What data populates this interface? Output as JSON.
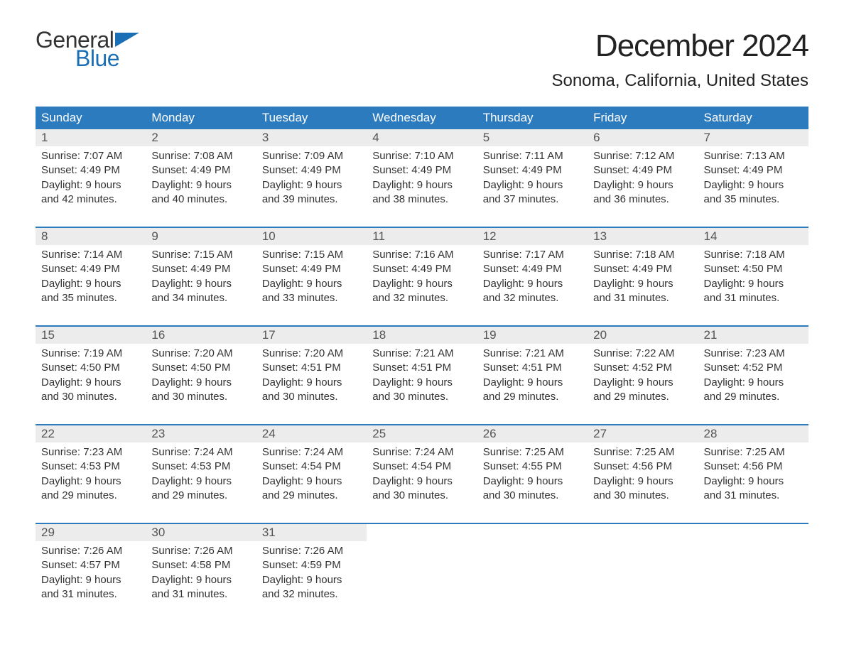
{
  "logo": {
    "text_general": "General",
    "text_blue": "Blue",
    "flag_color": "#1a6fb5"
  },
  "title": "December 2024",
  "location": "Sonoma, California, United States",
  "colors": {
    "header_bg": "#2d7bbf",
    "header_text": "#ffffff",
    "daynum_bg": "#ececec",
    "row_border": "#2d7bbf",
    "body_text": "#333333",
    "logo_blue": "#1a6fb5"
  },
  "layout": {
    "columns": 7,
    "rows": 5,
    "font_size_body": 15,
    "font_size_title": 44,
    "font_size_location": 24,
    "font_size_dayheader": 17
  },
  "day_headers": [
    "Sunday",
    "Monday",
    "Tuesday",
    "Wednesday",
    "Thursday",
    "Friday",
    "Saturday"
  ],
  "weeks": [
    [
      {
        "num": "1",
        "sunrise": "Sunrise: 7:07 AM",
        "sunset": "Sunset: 4:49 PM",
        "day1": "Daylight: 9 hours",
        "day2": "and 42 minutes."
      },
      {
        "num": "2",
        "sunrise": "Sunrise: 7:08 AM",
        "sunset": "Sunset: 4:49 PM",
        "day1": "Daylight: 9 hours",
        "day2": "and 40 minutes."
      },
      {
        "num": "3",
        "sunrise": "Sunrise: 7:09 AM",
        "sunset": "Sunset: 4:49 PM",
        "day1": "Daylight: 9 hours",
        "day2": "and 39 minutes."
      },
      {
        "num": "4",
        "sunrise": "Sunrise: 7:10 AM",
        "sunset": "Sunset: 4:49 PM",
        "day1": "Daylight: 9 hours",
        "day2": "and 38 minutes."
      },
      {
        "num": "5",
        "sunrise": "Sunrise: 7:11 AM",
        "sunset": "Sunset: 4:49 PM",
        "day1": "Daylight: 9 hours",
        "day2": "and 37 minutes."
      },
      {
        "num": "6",
        "sunrise": "Sunrise: 7:12 AM",
        "sunset": "Sunset: 4:49 PM",
        "day1": "Daylight: 9 hours",
        "day2": "and 36 minutes."
      },
      {
        "num": "7",
        "sunrise": "Sunrise: 7:13 AM",
        "sunset": "Sunset: 4:49 PM",
        "day1": "Daylight: 9 hours",
        "day2": "and 35 minutes."
      }
    ],
    [
      {
        "num": "8",
        "sunrise": "Sunrise: 7:14 AM",
        "sunset": "Sunset: 4:49 PM",
        "day1": "Daylight: 9 hours",
        "day2": "and 35 minutes."
      },
      {
        "num": "9",
        "sunrise": "Sunrise: 7:15 AM",
        "sunset": "Sunset: 4:49 PM",
        "day1": "Daylight: 9 hours",
        "day2": "and 34 minutes."
      },
      {
        "num": "10",
        "sunrise": "Sunrise: 7:15 AM",
        "sunset": "Sunset: 4:49 PM",
        "day1": "Daylight: 9 hours",
        "day2": "and 33 minutes."
      },
      {
        "num": "11",
        "sunrise": "Sunrise: 7:16 AM",
        "sunset": "Sunset: 4:49 PM",
        "day1": "Daylight: 9 hours",
        "day2": "and 32 minutes."
      },
      {
        "num": "12",
        "sunrise": "Sunrise: 7:17 AM",
        "sunset": "Sunset: 4:49 PM",
        "day1": "Daylight: 9 hours",
        "day2": "and 32 minutes."
      },
      {
        "num": "13",
        "sunrise": "Sunrise: 7:18 AM",
        "sunset": "Sunset: 4:49 PM",
        "day1": "Daylight: 9 hours",
        "day2": "and 31 minutes."
      },
      {
        "num": "14",
        "sunrise": "Sunrise: 7:18 AM",
        "sunset": "Sunset: 4:50 PM",
        "day1": "Daylight: 9 hours",
        "day2": "and 31 minutes."
      }
    ],
    [
      {
        "num": "15",
        "sunrise": "Sunrise: 7:19 AM",
        "sunset": "Sunset: 4:50 PM",
        "day1": "Daylight: 9 hours",
        "day2": "and 30 minutes."
      },
      {
        "num": "16",
        "sunrise": "Sunrise: 7:20 AM",
        "sunset": "Sunset: 4:50 PM",
        "day1": "Daylight: 9 hours",
        "day2": "and 30 minutes."
      },
      {
        "num": "17",
        "sunrise": "Sunrise: 7:20 AM",
        "sunset": "Sunset: 4:51 PM",
        "day1": "Daylight: 9 hours",
        "day2": "and 30 minutes."
      },
      {
        "num": "18",
        "sunrise": "Sunrise: 7:21 AM",
        "sunset": "Sunset: 4:51 PM",
        "day1": "Daylight: 9 hours",
        "day2": "and 30 minutes."
      },
      {
        "num": "19",
        "sunrise": "Sunrise: 7:21 AM",
        "sunset": "Sunset: 4:51 PM",
        "day1": "Daylight: 9 hours",
        "day2": "and 29 minutes."
      },
      {
        "num": "20",
        "sunrise": "Sunrise: 7:22 AM",
        "sunset": "Sunset: 4:52 PM",
        "day1": "Daylight: 9 hours",
        "day2": "and 29 minutes."
      },
      {
        "num": "21",
        "sunrise": "Sunrise: 7:23 AM",
        "sunset": "Sunset: 4:52 PM",
        "day1": "Daylight: 9 hours",
        "day2": "and 29 minutes."
      }
    ],
    [
      {
        "num": "22",
        "sunrise": "Sunrise: 7:23 AM",
        "sunset": "Sunset: 4:53 PM",
        "day1": "Daylight: 9 hours",
        "day2": "and 29 minutes."
      },
      {
        "num": "23",
        "sunrise": "Sunrise: 7:24 AM",
        "sunset": "Sunset: 4:53 PM",
        "day1": "Daylight: 9 hours",
        "day2": "and 29 minutes."
      },
      {
        "num": "24",
        "sunrise": "Sunrise: 7:24 AM",
        "sunset": "Sunset: 4:54 PM",
        "day1": "Daylight: 9 hours",
        "day2": "and 29 minutes."
      },
      {
        "num": "25",
        "sunrise": "Sunrise: 7:24 AM",
        "sunset": "Sunset: 4:54 PM",
        "day1": "Daylight: 9 hours",
        "day2": "and 30 minutes."
      },
      {
        "num": "26",
        "sunrise": "Sunrise: 7:25 AM",
        "sunset": "Sunset: 4:55 PM",
        "day1": "Daylight: 9 hours",
        "day2": "and 30 minutes."
      },
      {
        "num": "27",
        "sunrise": "Sunrise: 7:25 AM",
        "sunset": "Sunset: 4:56 PM",
        "day1": "Daylight: 9 hours",
        "day2": "and 30 minutes."
      },
      {
        "num": "28",
        "sunrise": "Sunrise: 7:25 AM",
        "sunset": "Sunset: 4:56 PM",
        "day1": "Daylight: 9 hours",
        "day2": "and 31 minutes."
      }
    ],
    [
      {
        "num": "29",
        "sunrise": "Sunrise: 7:26 AM",
        "sunset": "Sunset: 4:57 PM",
        "day1": "Daylight: 9 hours",
        "day2": "and 31 minutes."
      },
      {
        "num": "30",
        "sunrise": "Sunrise: 7:26 AM",
        "sunset": "Sunset: 4:58 PM",
        "day1": "Daylight: 9 hours",
        "day2": "and 31 minutes."
      },
      {
        "num": "31",
        "sunrise": "Sunrise: 7:26 AM",
        "sunset": "Sunset: 4:59 PM",
        "day1": "Daylight: 9 hours",
        "day2": "and 32 minutes."
      },
      null,
      null,
      null,
      null
    ]
  ]
}
